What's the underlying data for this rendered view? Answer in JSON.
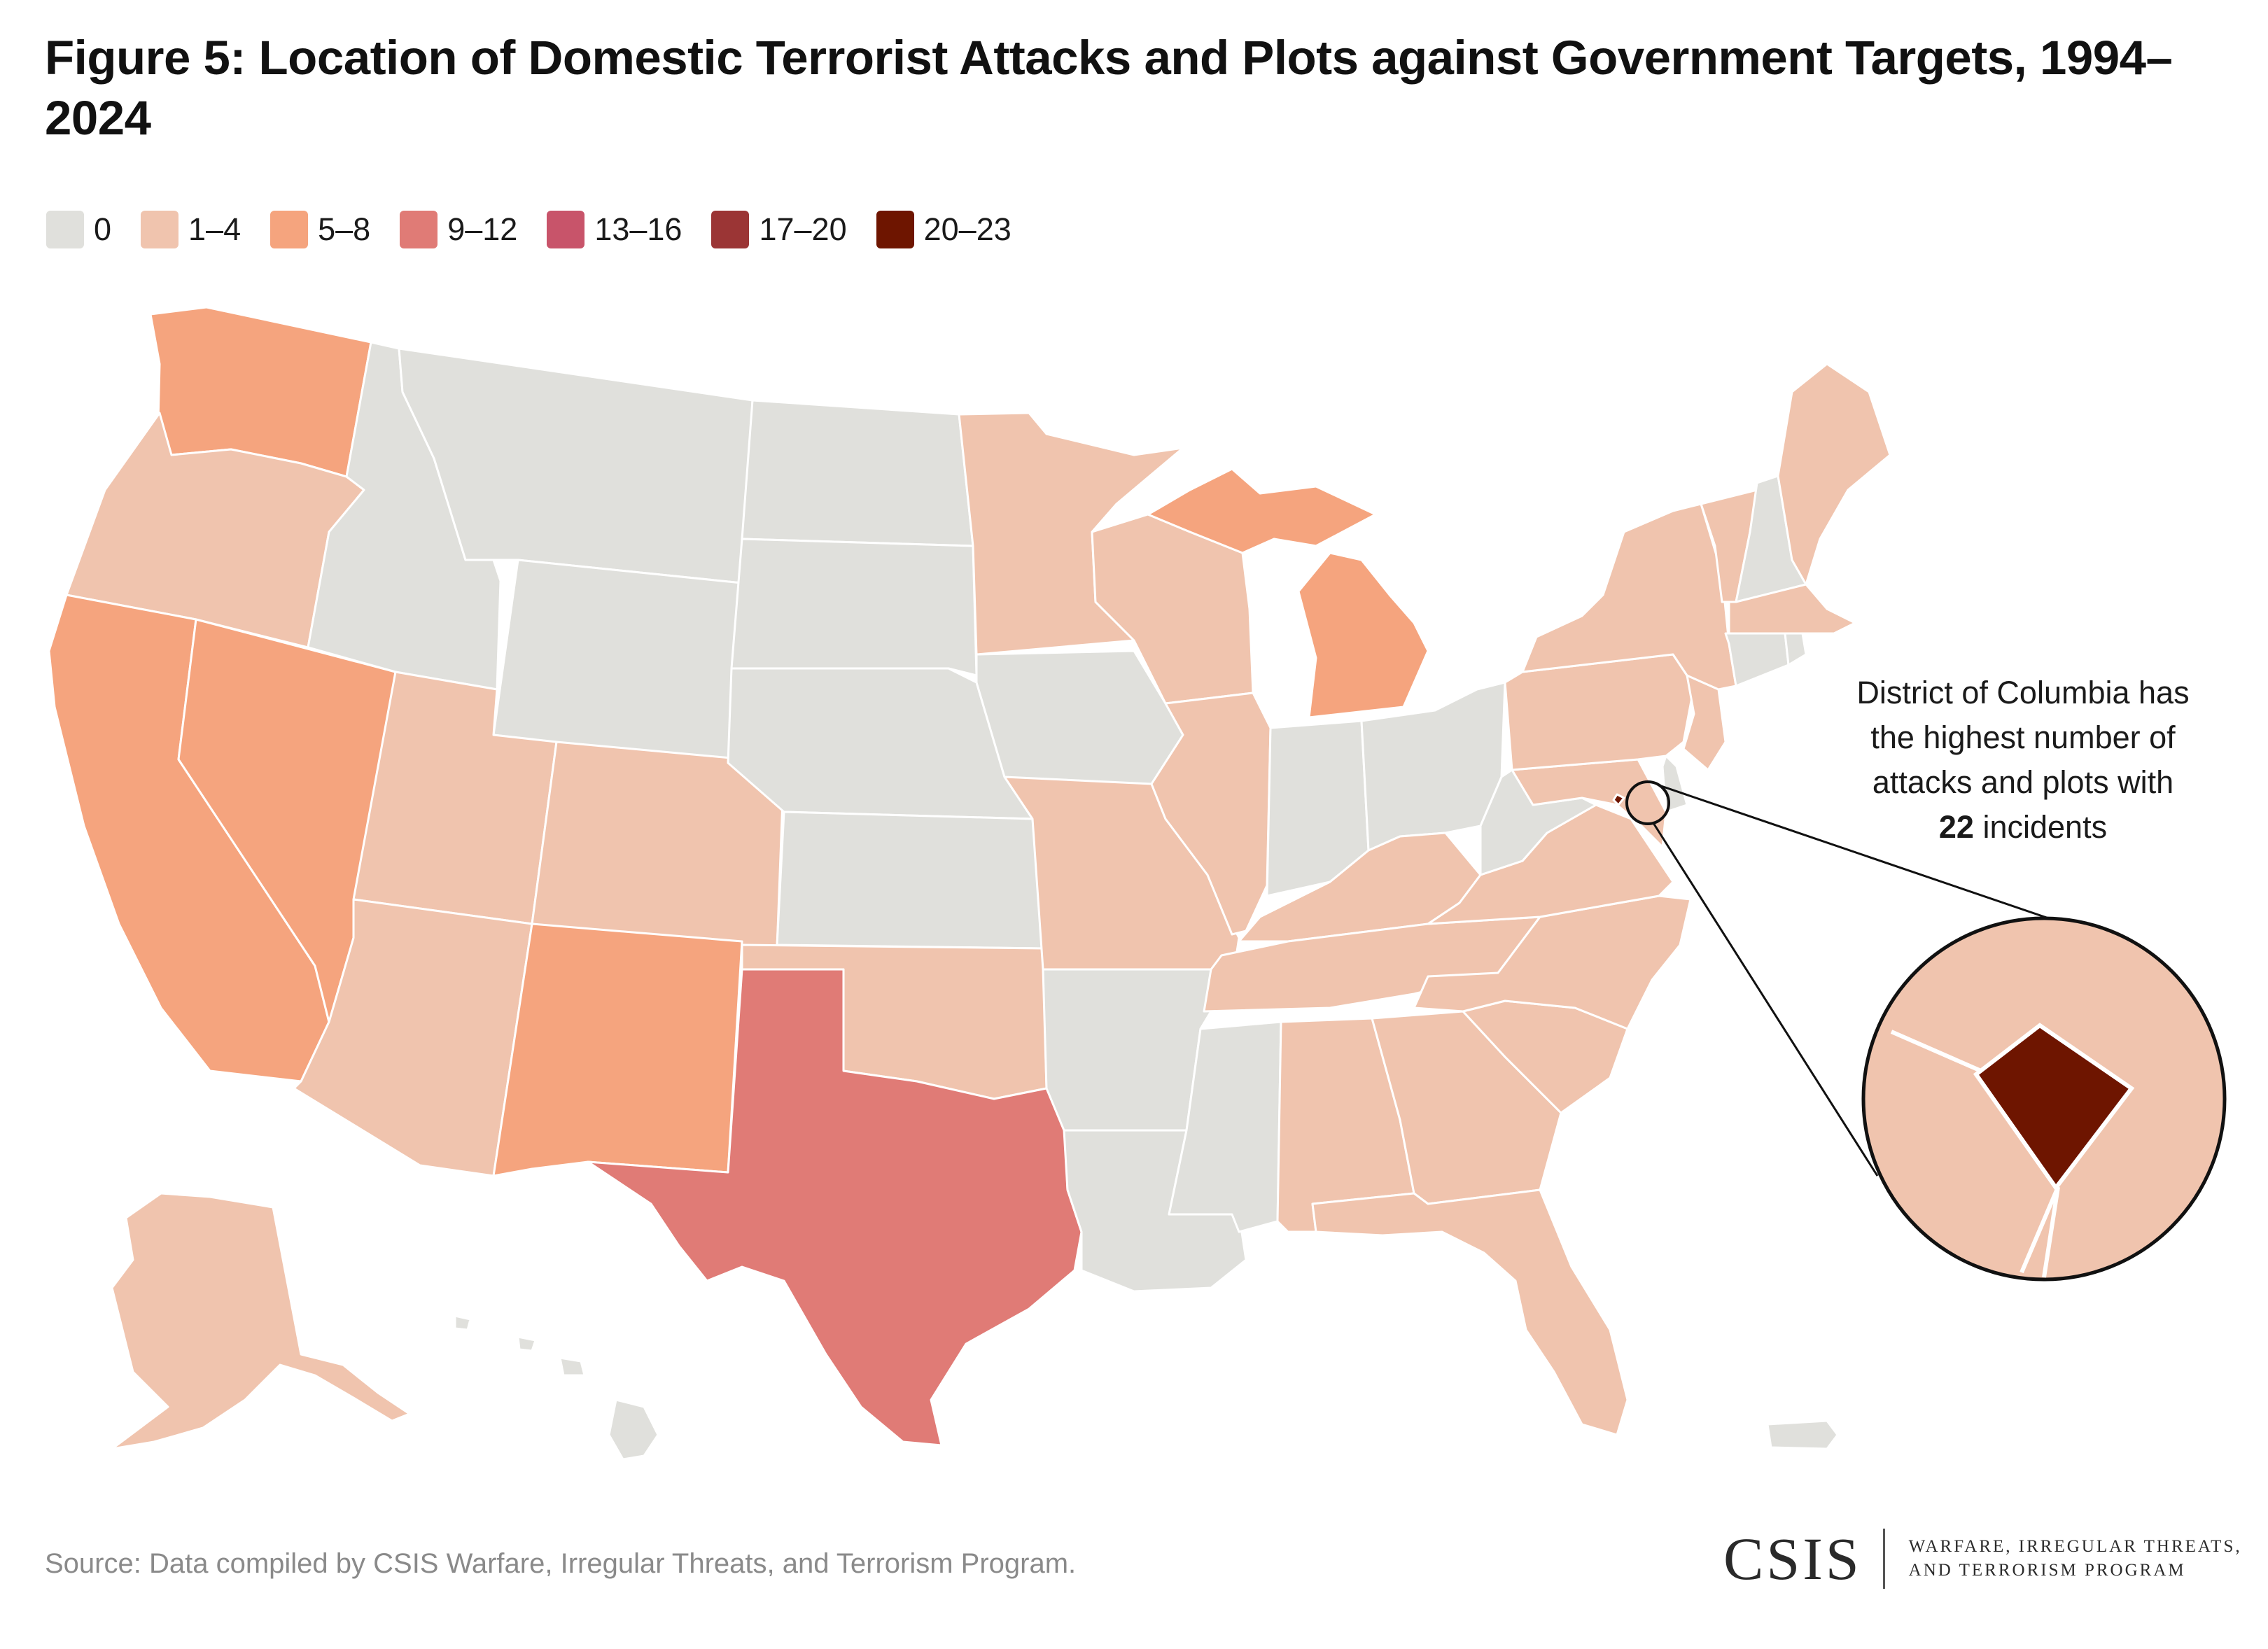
{
  "title": "Figure 5: Location of Domestic Terrorist Attacks and Plots against Government Targets, 1994–2024",
  "legend": [
    {
      "label": "0",
      "color": "#e0e0dc"
    },
    {
      "label": "1–4",
      "color": "#f0c4ae"
    },
    {
      "label": "5–8",
      "color": "#f5a47e"
    },
    {
      "label": "9–12",
      "color": "#e07b76"
    },
    {
      "label": "13–16",
      "color": "#c8546a"
    },
    {
      "label": "17–20",
      "color": "#9b3535"
    },
    {
      "label": "20–23",
      "color": "#6e1500"
    }
  ],
  "chart_data": {
    "type": "choropleth",
    "bins": [
      "0",
      "1–4",
      "5–8",
      "9–12",
      "13–16",
      "17–20",
      "20–23"
    ],
    "states": [
      {
        "state": "WA",
        "bin": "5–8"
      },
      {
        "state": "OR",
        "bin": "1–4"
      },
      {
        "state": "CA",
        "bin": "5–8"
      },
      {
        "state": "NV",
        "bin": "5–8"
      },
      {
        "state": "ID",
        "bin": "0"
      },
      {
        "state": "MT",
        "bin": "0"
      },
      {
        "state": "WY",
        "bin": "0"
      },
      {
        "state": "UT",
        "bin": "1–4"
      },
      {
        "state": "AZ",
        "bin": "1–4"
      },
      {
        "state": "CO",
        "bin": "1–4"
      },
      {
        "state": "NM",
        "bin": "5–8"
      },
      {
        "state": "ND",
        "bin": "0"
      },
      {
        "state": "SD",
        "bin": "0"
      },
      {
        "state": "NE",
        "bin": "0"
      },
      {
        "state": "KS",
        "bin": "0"
      },
      {
        "state": "OK",
        "bin": "1–4"
      },
      {
        "state": "TX",
        "bin": "9–12"
      },
      {
        "state": "MN",
        "bin": "1–4"
      },
      {
        "state": "IA",
        "bin": "0"
      },
      {
        "state": "MO",
        "bin": "1–4"
      },
      {
        "state": "AR",
        "bin": "0"
      },
      {
        "state": "LA",
        "bin": "0"
      },
      {
        "state": "WI",
        "bin": "1–4"
      },
      {
        "state": "IL",
        "bin": "1–4"
      },
      {
        "state": "MI",
        "bin": "5–8"
      },
      {
        "state": "IN",
        "bin": "0"
      },
      {
        "state": "OH",
        "bin": "0"
      },
      {
        "state": "KY",
        "bin": "1–4"
      },
      {
        "state": "TN",
        "bin": "1–4"
      },
      {
        "state": "MS",
        "bin": "0"
      },
      {
        "state": "AL",
        "bin": "1–4"
      },
      {
        "state": "GA",
        "bin": "1–4"
      },
      {
        "state": "FL",
        "bin": "1–4"
      },
      {
        "state": "SC",
        "bin": "1–4"
      },
      {
        "state": "NC",
        "bin": "1–4"
      },
      {
        "state": "VA",
        "bin": "1–4"
      },
      {
        "state": "WV",
        "bin": "0"
      },
      {
        "state": "PA",
        "bin": "1–4"
      },
      {
        "state": "NY",
        "bin": "1–4"
      },
      {
        "state": "VT",
        "bin": "1–4"
      },
      {
        "state": "NH",
        "bin": "0"
      },
      {
        "state": "ME",
        "bin": "1–4"
      },
      {
        "state": "MA",
        "bin": "1–4"
      },
      {
        "state": "CT",
        "bin": "0"
      },
      {
        "state": "RI",
        "bin": "0"
      },
      {
        "state": "NJ",
        "bin": "1–4"
      },
      {
        "state": "DE",
        "bin": "0"
      },
      {
        "state": "MD",
        "bin": "1–4"
      },
      {
        "state": "DC",
        "bin": "20–23",
        "value": 22
      },
      {
        "state": "AK",
        "bin": "1–4"
      },
      {
        "state": "HI",
        "bin": "0"
      },
      {
        "state": "PR",
        "bin": "0"
      }
    ]
  },
  "annotation": {
    "line1": "District of Columbia has",
    "line2": "the highest number of",
    "line3": "attacks and plots with",
    "highlight": "22",
    "line4_suffix": " incidents"
  },
  "source": "Source: Data compiled by CSIS Warfare, Irregular Threats, and Terrorism Program.",
  "logo": {
    "wordmark": "CSIS",
    "tag_line1": "WARFARE, IRREGULAR THREATS,",
    "tag_line2": "AND TERRORISM PROGRAM"
  }
}
